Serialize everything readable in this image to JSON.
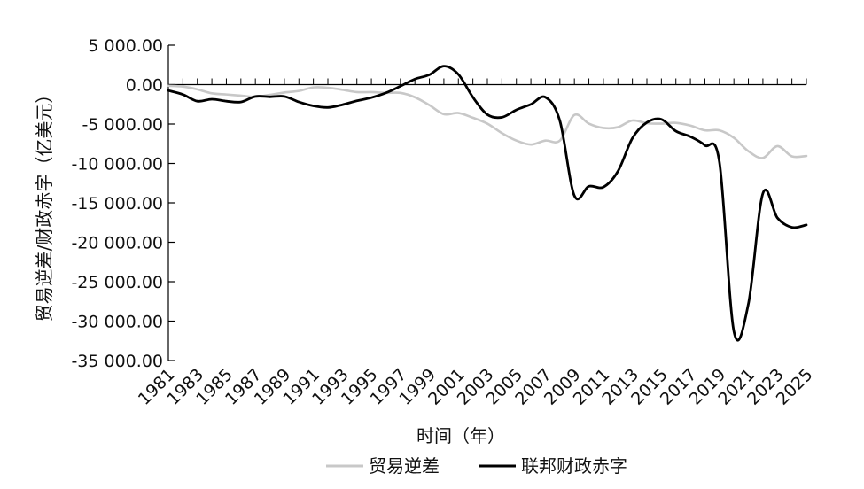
{
  "chart_data": {
    "type": "line",
    "title": "",
    "xlabel": "时间（年）",
    "ylabel": "贸易逆差/财政赤字（亿美元）",
    "ylim": [
      -35000,
      5000
    ],
    "yticks": [
      5000,
      0,
      -5000,
      -10000,
      -15000,
      -20000,
      -25000,
      -30000,
      -35000
    ],
    "ytick_labels": [
      "5 000.00",
      "0.00",
      "-5 000.00",
      "-10 000.00",
      "-15 000.00",
      "-20 000.00",
      "-25 000.00",
      "-30 000.00",
      "-35 000.00"
    ],
    "xlim": [
      1981,
      2025
    ],
    "xtick_labels": [
      "1981",
      "1983",
      "1985",
      "1987",
      "1989",
      "1991",
      "1993",
      "1995",
      "1997",
      "1999",
      "2001",
      "2003",
      "2005",
      "2007",
      "2009",
      "2011",
      "2013",
      "2015",
      "2017",
      "2019",
      "2021",
      "2023",
      "2025"
    ],
    "legend_position": "bottom",
    "grid": false,
    "x": [
      1981,
      1982,
      1983,
      1984,
      1985,
      1986,
      1987,
      1988,
      1989,
      1990,
      1991,
      1992,
      1993,
      1994,
      1995,
      1996,
      1997,
      1998,
      1999,
      2000,
      2001,
      2002,
      2003,
      2004,
      2005,
      2006,
      2007,
      2008,
      2009,
      2010,
      2011,
      2012,
      2013,
      2014,
      2015,
      2016,
      2017,
      2018,
      2019,
      2020,
      2021,
      2022,
      2023,
      2024,
      2025
    ],
    "series": [
      {
        "name": "贸易逆差",
        "color": "#c8c8c8",
        "values": [
          -150,
          -250,
          -600,
          -1100,
          -1250,
          -1400,
          -1550,
          -1300,
          -1000,
          -800,
          -350,
          -400,
          -650,
          -950,
          -950,
          -1050,
          -1050,
          -1600,
          -2600,
          -3750,
          -3600,
          -4200,
          -4950,
          -6150,
          -7100,
          -7600,
          -7100,
          -7100,
          -3850,
          -4950,
          -5500,
          -5400,
          -4550,
          -4900,
          -4950,
          -4850,
          -5200,
          -5800,
          -5800,
          -6750,
          -8450,
          -9300,
          -7800,
          -9100,
          -9050
        ]
      },
      {
        "name": "联邦财政赤字",
        "color": "#000000",
        "values": [
          -750,
          -1250,
          -2100,
          -1850,
          -2100,
          -2200,
          -1500,
          -1550,
          -1500,
          -2200,
          -2700,
          -2900,
          -2550,
          -2050,
          -1650,
          -1050,
          -200,
          700,
          1250,
          2350,
          1300,
          -1600,
          -3800,
          -4150,
          -3200,
          -2500,
          -1600,
          -4600,
          -14100,
          -12900,
          -13000,
          -11000,
          -6800,
          -4800,
          -4400,
          -5900,
          -6600,
          -7700,
          -9800,
          -31300,
          -27800,
          -13800,
          -16900,
          -18100,
          -17800
        ]
      }
    ]
  }
}
